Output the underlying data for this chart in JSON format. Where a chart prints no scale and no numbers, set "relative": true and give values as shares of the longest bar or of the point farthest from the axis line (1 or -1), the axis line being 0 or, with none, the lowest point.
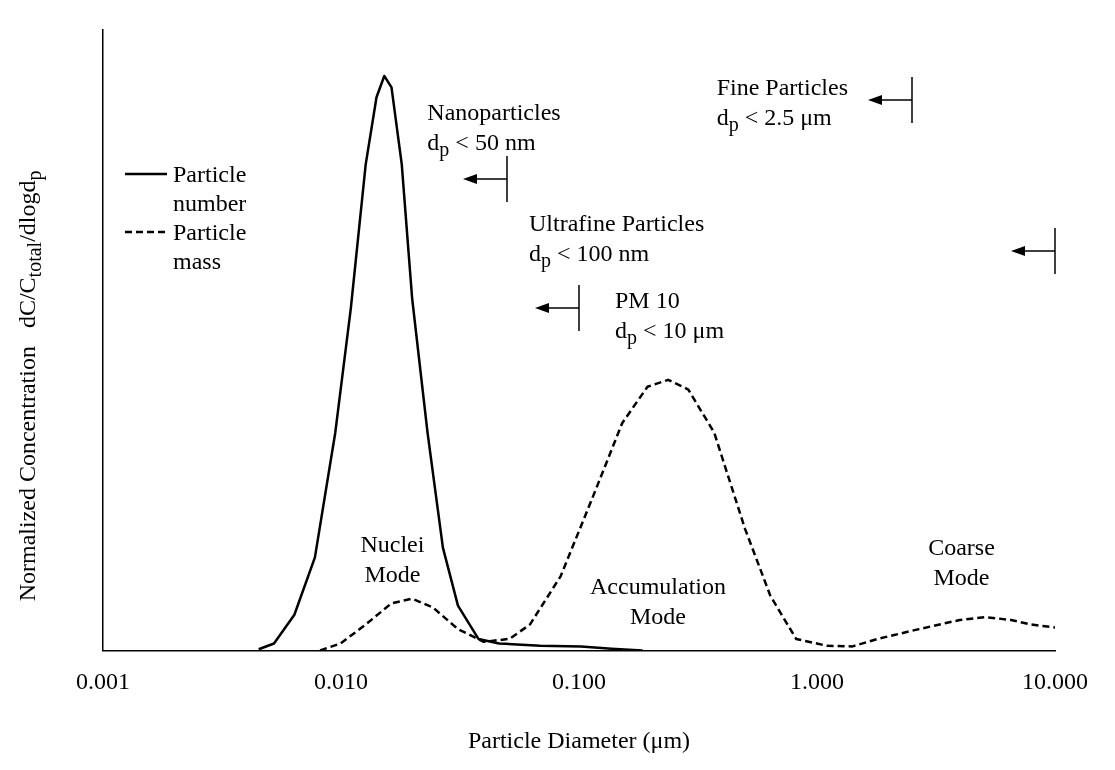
{
  "chart_data": {
    "type": "line",
    "xlabel": "Particle Diameter (μm)",
    "ylabel": "Normalized Concentration   dC/C$_{total}$/dlogd$_{p}$",
    "log": "x",
    "relative": true,
    "grid": false,
    "legend": "left",
    "marker": "none",
    "xlim": [
      0.001,
      10
    ],
    "xticks": [
      {
        "value": 0.001,
        "label": "0.001"
      },
      {
        "value": 0.01,
        "label": "0.010"
      },
      {
        "value": 0.1,
        "label": "0.100"
      },
      {
        "value": 1,
        "label": "1.000"
      },
      {
        "value": 10,
        "label": "10.000"
      }
    ],
    "series": [
      {
        "name": "Particle number",
        "color": "#000000",
        "line_style": "solid",
        "x": [
          0.00451,
          0.00523,
          0.00637,
          0.00777,
          0.00946,
          0.011,
          0.0127,
          0.0141,
          0.0152,
          0.0163,
          0.018,
          0.0199,
          0.0231,
          0.0268,
          0.031,
          0.0378,
          0.0462,
          0.0687,
          0.102,
          0.137,
          0.185
        ],
        "values": [
          0.002,
          0.012,
          0.062,
          0.162,
          0.379,
          0.596,
          0.846,
          0.963,
          1,
          0.98,
          0.846,
          0.613,
          0.379,
          0.179,
          0.078,
          0.02,
          0.012,
          0.008,
          0.007,
          0.003,
          0
        ]
      },
      {
        "name": "Particle mass",
        "color": "#000000",
        "line_style": "dashed",
        "x": [
          0.00817,
          0.00995,
          0.0127,
          0.0163,
          0.0199,
          0.0243,
          0.031,
          0.0398,
          0.051,
          0.0622,
          0.0837,
          0.113,
          0.152,
          0.194,
          0.237,
          0.288,
          0.37,
          0.498,
          0.637,
          0.817,
          1.1,
          1.41,
          1.8,
          2.68,
          3.98,
          5.1,
          6.53,
          7.96,
          10
        ],
        "values": [
          0,
          0.012,
          0.045,
          0.082,
          0.09,
          0.075,
          0.037,
          0.015,
          0.02,
          0.045,
          0.129,
          0.262,
          0.396,
          0.459,
          0.471,
          0.454,
          0.379,
          0.212,
          0.095,
          0.02,
          0.008,
          0.007,
          0.02,
          0.037,
          0.053,
          0.058,
          0.053,
          0.045,
          0.04
        ]
      }
    ],
    "ref_lines": [
      {
        "axis": "x",
        "value": 0.05,
        "label": "Nanoparticles\nd$_{p}$ < 50 nm"
      },
      {
        "axis": "x",
        "value": 0.1,
        "label": "Ultrafine Particles\nd$_{p}$ < 100 nm"
      },
      {
        "axis": "x",
        "value": 2.5,
        "label": "Fine Particles\nd$_{p}$ < 2.5 μm"
      },
      {
        "axis": "x",
        "value": 10,
        "label": "PM 10\nd$_{p}$ < 10 μm"
      }
    ],
    "annotations": [
      "Nuclei\nMode",
      "Accumulation\nMode",
      "Coarse\nMode"
    ]
  }
}
